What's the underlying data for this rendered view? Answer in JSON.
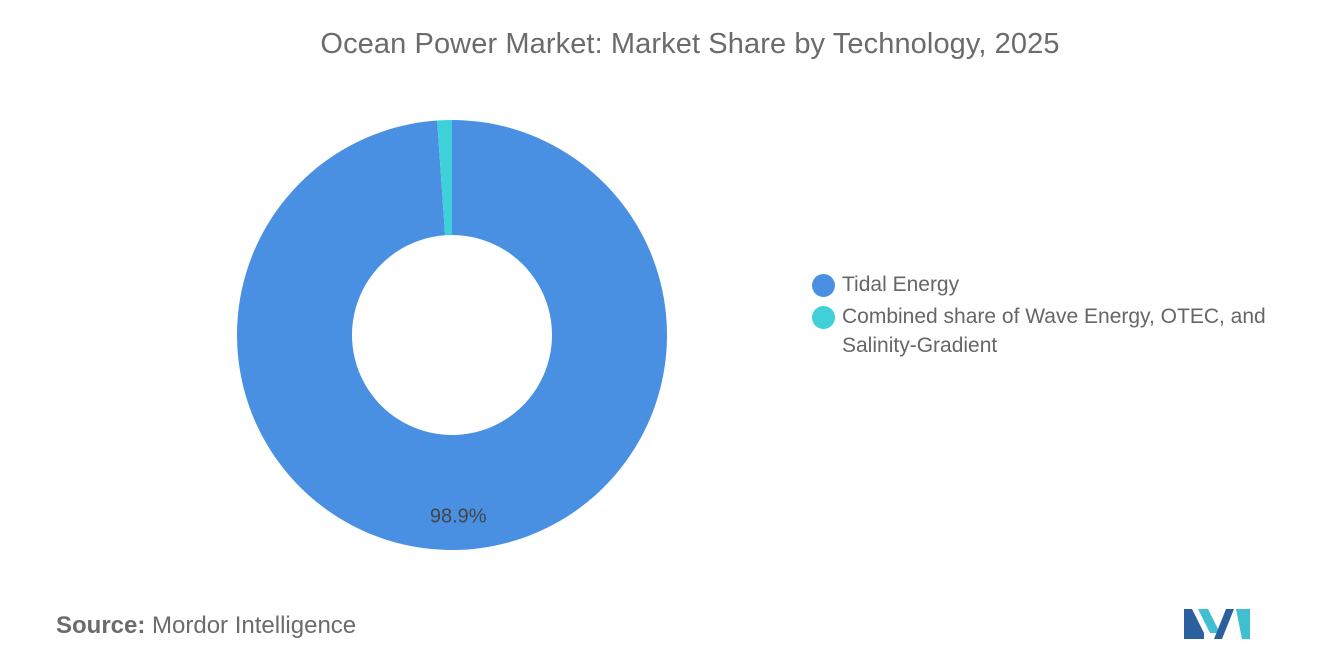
{
  "chart_data": {
    "type": "pie",
    "variant": "donut",
    "title": "Ocean Power Market: Market Share by Technology, 2025",
    "series": [
      {
        "name": "Tidal Energy",
        "value": 98.9,
        "label": "98.9%",
        "color": "#4a90e2"
      },
      {
        "name": "Combined share of Wave Energy, OTEC, and Salinity-Gradient",
        "value": 1.1,
        "label": "",
        "color": "#3fd0d9"
      }
    ],
    "legend": "right"
  },
  "source": {
    "label": "Source:",
    "value": "Mordor Intelligence"
  },
  "logo": {
    "icon": "mordor-intelligence-logo-icon",
    "colors": [
      "#2b5f9e",
      "#3fbfd0"
    ]
  }
}
